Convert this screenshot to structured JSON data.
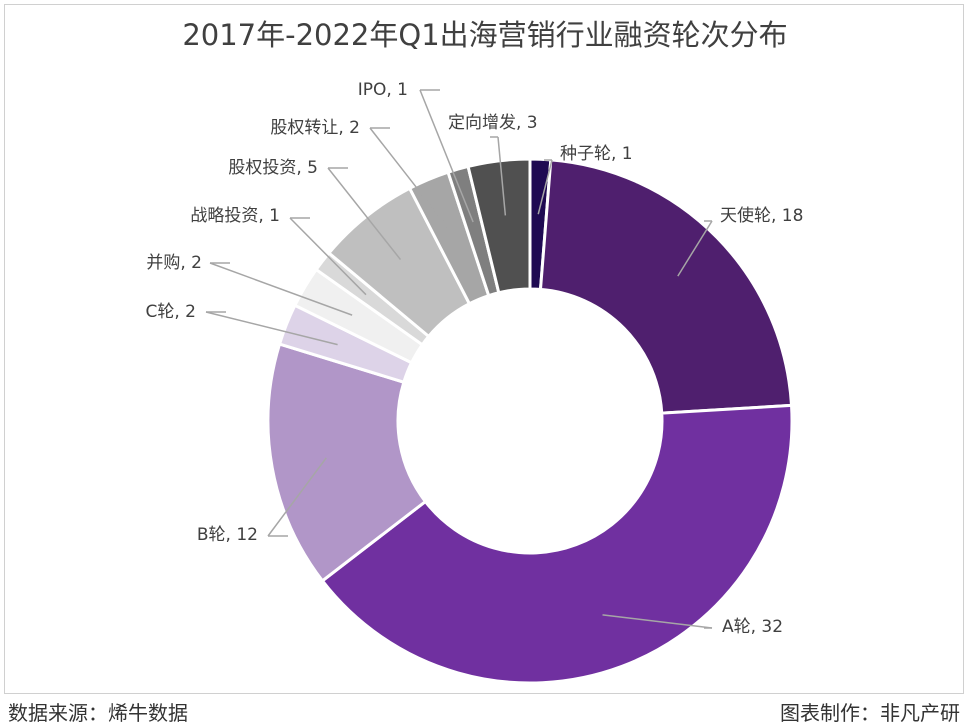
{
  "chart_data": {
    "type": "pie",
    "donut": true,
    "title": "2017年-2022年Q1出海营销行业融资轮次分布",
    "slices": [
      {
        "name": "种子轮",
        "value": 1,
        "text": "种子轮, 1",
        "color": "#1f0a52"
      },
      {
        "name": "天使轮",
        "value": 18,
        "text": "天使轮, 18",
        "color": "#4f1f6e"
      },
      {
        "name": "A轮",
        "value": 32,
        "text": "A轮, 32",
        "color": "#7030a0"
      },
      {
        "name": "B轮",
        "value": 12,
        "text": "B轮, 12",
        "color": "#b196c8"
      },
      {
        "name": "C轮",
        "value": 2,
        "text": "C轮, 2",
        "color": "#ddd3e8"
      },
      {
        "name": "并购",
        "value": 2,
        "text": "并购, 2",
        "color": "#f0f0f0"
      },
      {
        "name": "战略投资",
        "value": 1,
        "text": "战略投资, 1",
        "color": "#d9d9d9"
      },
      {
        "name": "股权投资",
        "value": 5,
        "text": "股权投资, 5",
        "color": "#bfbfbf"
      },
      {
        "name": "股权转让",
        "value": 2,
        "text": "股权转让, 2",
        "color": "#a6a6a6"
      },
      {
        "name": "IPO",
        "value": 1,
        "text": "IPO, 1",
        "color": "#7f7f7f"
      },
      {
        "name": "定向增发",
        "value": 3,
        "text": "定向增发, 3",
        "color": "#505050"
      }
    ]
  },
  "footer": {
    "source": "数据来源：烯牛数据",
    "credit": "图表制作：非凡产研"
  }
}
